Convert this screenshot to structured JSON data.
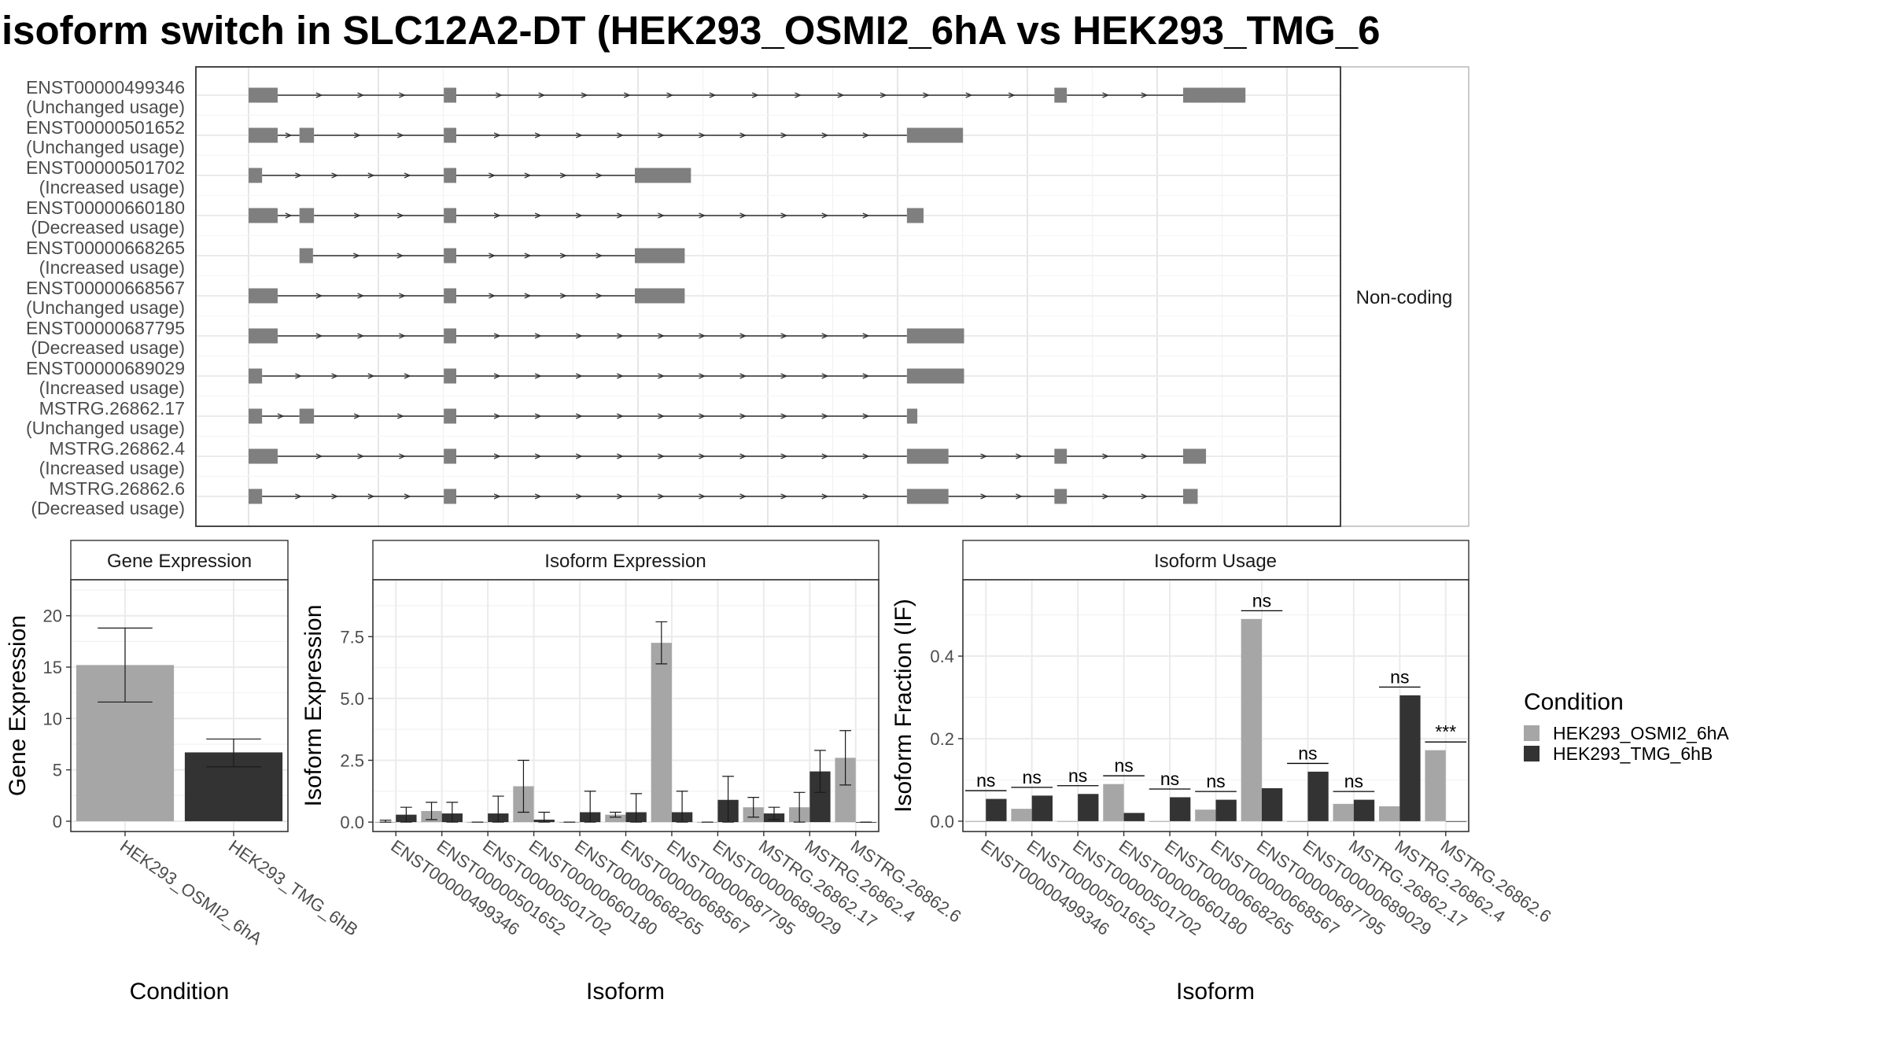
{
  "chart_data": [
    {
      "type": "gene-structure",
      "title": "isoform switch in SLC12A2-DT (HEK293_OSMI2_6hA vs HEK293_TMG_6",
      "facet_label": "Non-coding",
      "isoforms": [
        {
          "id": "ENST00000499346",
          "usage": "(Unchanged usage)",
          "exons": [
            [
              0,
              0.028
            ],
            [
              0.188,
              0.2
            ],
            [
              0.776,
              0.788
            ],
            [
              0.9,
              0.96
            ]
          ]
        },
        {
          "id": "ENST00000501652",
          "usage": "(Unchanged usage)",
          "exons": [
            [
              0,
              0.028
            ],
            [
              0.049,
              0.063
            ],
            [
              0.188,
              0.2
            ],
            [
              0.634,
              0.688
            ]
          ]
        },
        {
          "id": "ENST00000501702",
          "usage": "(Increased usage)",
          "exons": [
            [
              0,
              0.013
            ],
            [
              0.188,
              0.2
            ],
            [
              0.372,
              0.426
            ]
          ]
        },
        {
          "id": "ENST00000660180",
          "usage": "(Decreased usage)",
          "exons": [
            [
              0,
              0.028
            ],
            [
              0.049,
              0.063
            ],
            [
              0.188,
              0.2
            ],
            [
              0.634,
              0.65
            ]
          ]
        },
        {
          "id": "ENST00000668265",
          "usage": "(Increased usage)",
          "exons": [
            [
              0.049,
              0.062
            ],
            [
              0.188,
              0.2
            ],
            [
              0.372,
              0.42
            ]
          ]
        },
        {
          "id": "ENST00000668567",
          "usage": "(Unchanged usage)",
          "exons": [
            [
              0,
              0.028
            ],
            [
              0.188,
              0.2
            ],
            [
              0.372,
              0.42
            ]
          ]
        },
        {
          "id": "ENST00000687795",
          "usage": "(Decreased usage)",
          "exons": [
            [
              0,
              0.028
            ],
            [
              0.188,
              0.2
            ],
            [
              0.634,
              0.689
            ]
          ]
        },
        {
          "id": "ENST00000689029",
          "usage": "(Increased usage)",
          "exons": [
            [
              0,
              0.013
            ],
            [
              0.188,
              0.2
            ],
            [
              0.634,
              0.689
            ]
          ]
        },
        {
          "id": "MSTRG.26862.17",
          "usage": "(Unchanged usage)",
          "exons": [
            [
              0,
              0.013
            ],
            [
              0.049,
              0.063
            ],
            [
              0.188,
              0.2
            ],
            [
              0.634,
              0.644
            ]
          ]
        },
        {
          "id": "MSTRG.26862.4",
          "usage": "(Increased usage)",
          "exons": [
            [
              0,
              0.028
            ],
            [
              0.188,
              0.2
            ],
            [
              0.634,
              0.674
            ],
            [
              0.776,
              0.788
            ],
            [
              0.9,
              0.922
            ]
          ]
        },
        {
          "id": "MSTRG.26862.6",
          "usage": "(Decreased usage)",
          "exons": [
            [
              0,
              0.013
            ],
            [
              0.188,
              0.2
            ],
            [
              0.634,
              0.674
            ],
            [
              0.776,
              0.788
            ],
            [
              0.9,
              0.914
            ]
          ]
        }
      ]
    },
    {
      "type": "bar",
      "title": "Gene Expression",
      "xlabel": "Condition",
      "ylabel": "Gene Expression",
      "ylim": [
        -1,
        23.5
      ],
      "yticks": [
        0,
        5,
        10,
        15,
        20
      ],
      "categories": [
        "HEK293_OSMI2_6hA",
        "HEK293_TMG_6hB"
      ],
      "values": [
        15.2,
        6.7
      ],
      "error": [
        [
          11.6,
          18.8
        ],
        [
          5.3,
          8.0
        ]
      ],
      "colors": [
        "#a6a6a6",
        "#333333"
      ]
    },
    {
      "type": "bar",
      "title": "Isoform Expression",
      "xlabel": "Isoform",
      "ylabel": "Isoform Expression",
      "ylim": [
        -0.38,
        9.8
      ],
      "yticks": [
        0.0,
        2.5,
        5.0,
        7.5
      ],
      "yticklabels": [
        "0.0",
        "2.5",
        "5.0",
        "7.5"
      ],
      "categories": [
        "ENST00000499346",
        "ENST00000501652",
        "ENST00000501702",
        "ENST00000660180",
        "ENST00000668265",
        "ENST00000668567",
        "ENST00000687795",
        "ENST00000689029",
        "MSTRG.26862.17",
        "MSTRG.26862.4",
        "MSTRG.26862.6"
      ],
      "series": [
        {
          "name": "HEK293_OSMI2_6hA",
          "color": "#a6a6a6",
          "values": [
            0.0,
            0.45,
            0.0,
            1.45,
            0.0,
            0.3,
            7.25,
            0.0,
            0.6,
            0.6,
            2.6
          ],
          "error": [
            [
              0.0,
              0.08
            ],
            [
              0.1,
              0.8
            ],
            [
              0,
              0
            ],
            [
              0.4,
              2.5
            ],
            [
              0,
              0
            ],
            [
              0.2,
              0.4
            ],
            [
              6.4,
              8.1
            ],
            [
              0,
              0
            ],
            [
              0.2,
              1.0
            ],
            [
              0.0,
              1.2
            ],
            [
              1.5,
              3.7
            ]
          ]
        },
        {
          "name": "HEK293_TMG_6hB",
          "color": "#333333",
          "values": [
            0.3,
            0.35,
            0.35,
            0.1,
            0.4,
            0.4,
            0.4,
            0.9,
            0.35,
            2.05,
            0.0
          ],
          "error": [
            [
              0.0,
              0.6
            ],
            [
              0.0,
              0.8
            ],
            [
              0.0,
              1.05
            ],
            [
              0.0,
              0.4
            ],
            [
              0.0,
              1.25
            ],
            [
              0.0,
              1.15
            ],
            [
              0.0,
              1.25
            ],
            [
              0.0,
              1.85
            ],
            [
              0.1,
              0.6
            ],
            [
              1.2,
              2.9
            ],
            [
              0,
              0
            ]
          ]
        }
      ]
    },
    {
      "type": "bar",
      "title": "Isoform Usage",
      "xlabel": "Isoform",
      "ylabel": "Isoform Fraction (IF)",
      "ylim": [
        -0.025,
        0.585
      ],
      "yticks": [
        0.0,
        0.2,
        0.4
      ],
      "yticklabels": [
        "0.0",
        "0.2",
        "0.4"
      ],
      "categories": [
        "ENST00000499346",
        "ENST00000501652",
        "ENST00000501702",
        "ENST00000660180",
        "ENST00000668265",
        "ENST00000668567",
        "ENST00000687795",
        "ENST00000689029",
        "MSTRG.26862.17",
        "MSTRG.26862.4",
        "MSTRG.26862.6"
      ],
      "series": [
        {
          "name": "HEK293_OSMI2_6hA",
          "color": "#a6a6a6",
          "values": [
            0.0,
            0.03,
            0.0,
            0.09,
            0.0,
            0.028,
            0.49,
            0.0,
            0.042,
            0.036,
            0.172
          ]
        },
        {
          "name": "HEK293_TMG_6hB",
          "color": "#333333",
          "values": [
            0.054,
            0.062,
            0.066,
            0.02,
            0.058,
            0.052,
            0.08,
            0.12,
            0.052,
            0.305,
            0.0
          ]
        }
      ],
      "significance": [
        "ns",
        "ns",
        "ns",
        "ns",
        "ns",
        "ns",
        "ns",
        "ns",
        "ns",
        "ns",
        "***"
      ],
      "sig_y": [
        0.074,
        0.082,
        0.086,
        0.11,
        0.078,
        0.072,
        0.51,
        0.14,
        0.072,
        0.325,
        0.192
      ]
    }
  ],
  "legend": {
    "title": "Condition",
    "entries": [
      {
        "label": "HEK293_OSMI2_6hA",
        "color": "#a6a6a6"
      },
      {
        "label": "HEK293_TMG_6hB",
        "color": "#333333"
      }
    ]
  }
}
